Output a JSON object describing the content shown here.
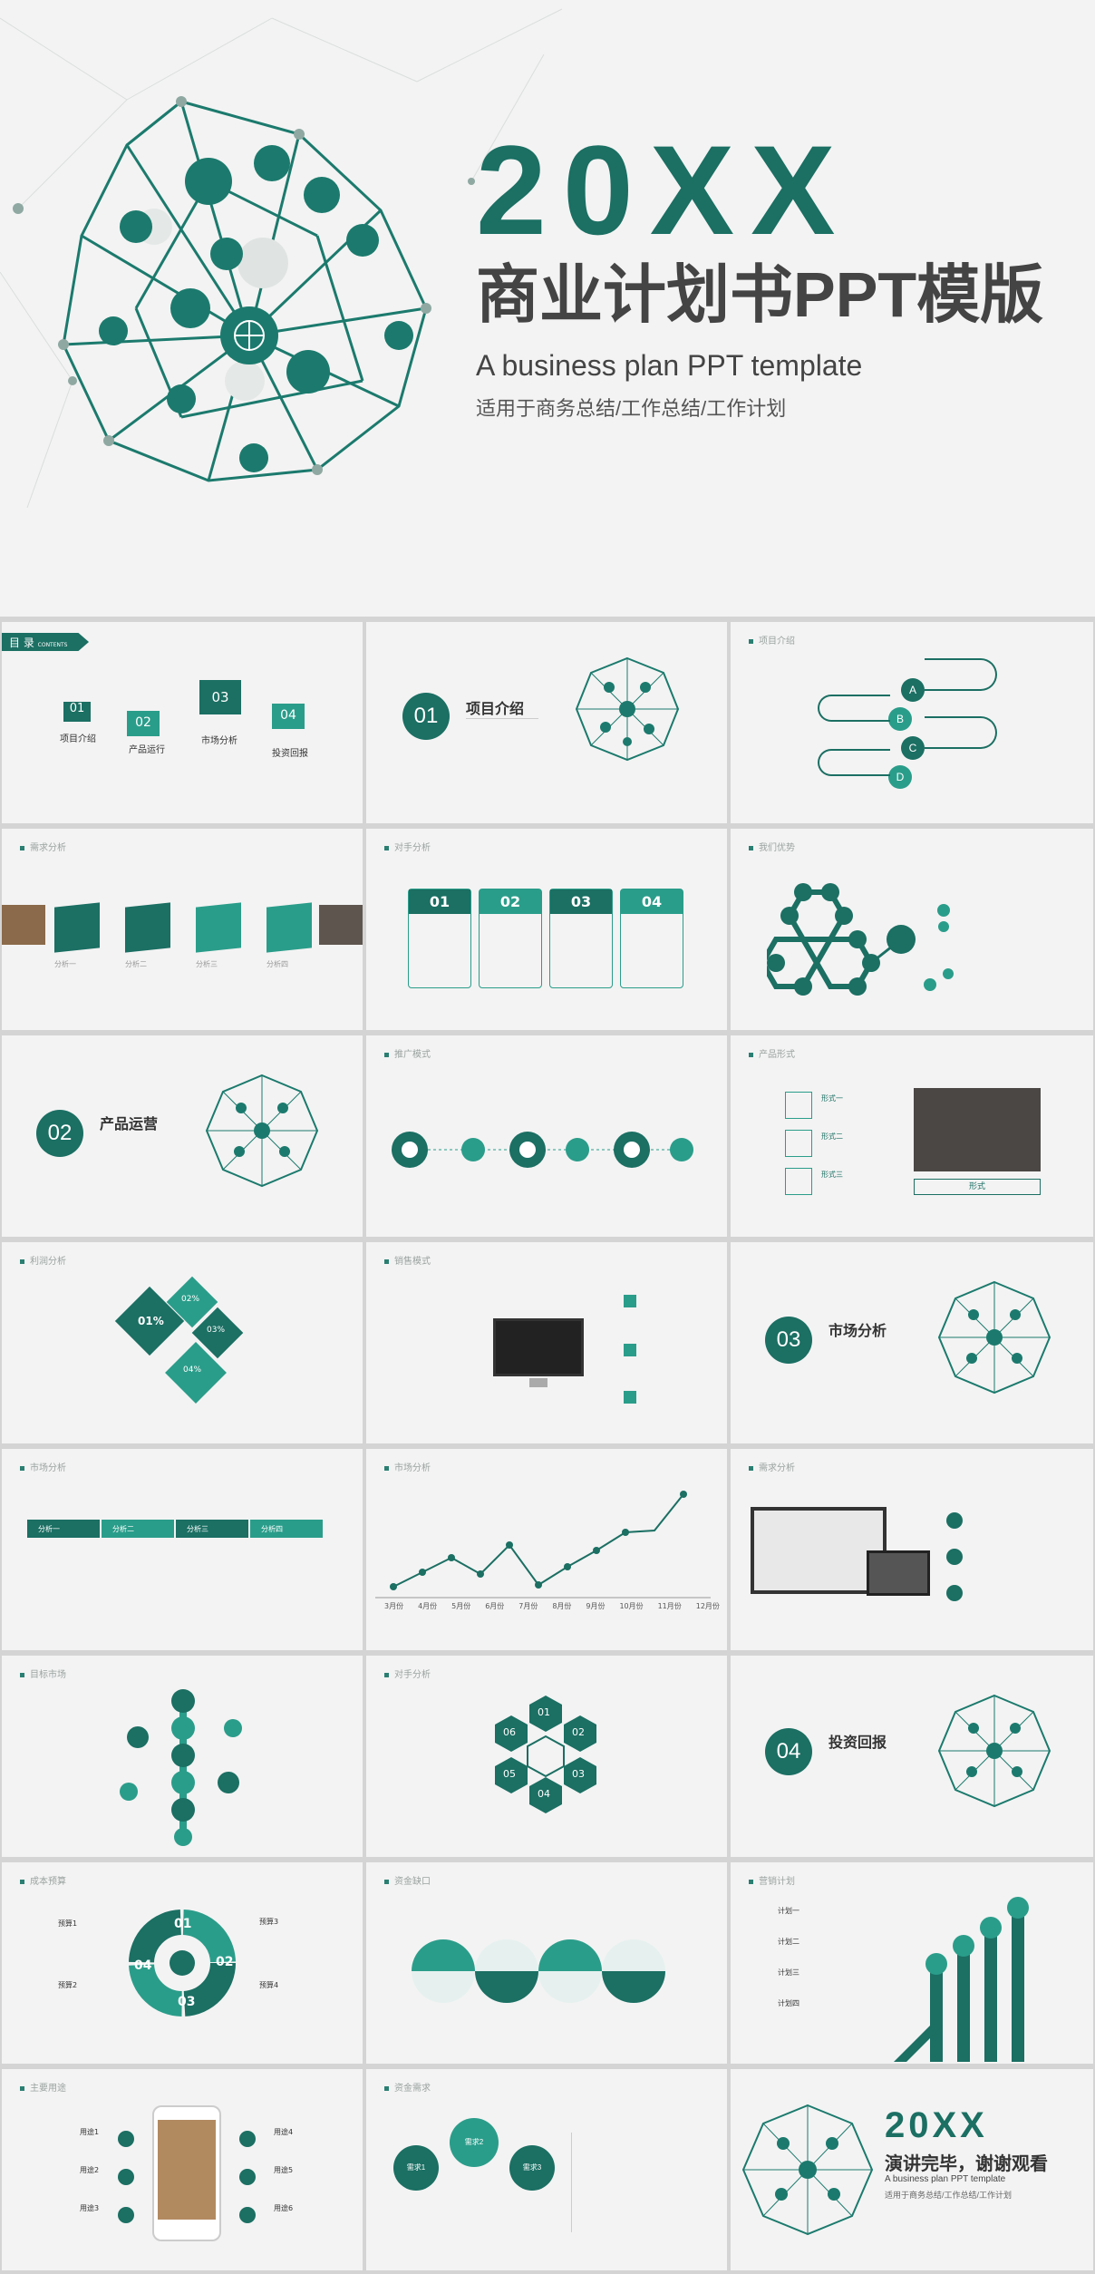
{
  "cover": {
    "year": "20XX",
    "title": "商业计划书PPT模版",
    "english": "A business plan PPT template",
    "subtitle": "适用于商务总结/工作总结/工作计划"
  },
  "colors": {
    "primary": "#1b6f63",
    "accent": "#2a9d8a",
    "light": "#e6f1ef"
  },
  "contents": {
    "header": "目 录",
    "header_en": "CONTENTS",
    "items": [
      {
        "num": "01",
        "label": "项目介绍"
      },
      {
        "num": "02",
        "label": "产品运行"
      },
      {
        "num": "03",
        "label": "市场分析"
      },
      {
        "num": "04",
        "label": "投资回报"
      }
    ]
  },
  "sections": [
    {
      "num": "01",
      "title": "项目介绍"
    },
    {
      "num": "02",
      "title": "产品运营"
    },
    {
      "num": "03",
      "title": "市场分析"
    },
    {
      "num": "04",
      "title": "投资回报"
    }
  ],
  "slide_headers": [
    "项目介绍",
    "需求分析",
    "对手分析",
    "我们优势",
    "推广模式",
    "产品形式",
    "利润分析",
    "销售模式",
    "市场分析",
    "市场分析",
    "需求分析",
    "目标市场",
    "对手分析",
    "成本预算",
    "资金缺口",
    "营销计划",
    "主要用途",
    "资金需求"
  ],
  "abc": [
    "A",
    "B",
    "C",
    "D"
  ],
  "quarters": [
    "01",
    "02",
    "03",
    "04"
  ],
  "analysis_labels": [
    "分析一",
    "分析二",
    "分析三",
    "分析四"
  ],
  "percents": [
    "01%",
    "02%",
    "03%",
    "04%"
  ],
  "formats": [
    "形式一",
    "形式二",
    "形式三"
  ],
  "format_btn": "形式",
  "months": [
    "3月份",
    "4月份",
    "5月份",
    "6月份",
    "7月份",
    "8月份",
    "9月份",
    "10月份",
    "11月份",
    "12月份"
  ],
  "hex_nums": [
    "01",
    "02",
    "03",
    "04",
    "05",
    "06"
  ],
  "cost_labels": [
    "预算1",
    "预算2",
    "预算3",
    "预算4"
  ],
  "plan_labels": [
    "计划一",
    "计划二",
    "计划三",
    "计划四"
  ],
  "use_labels": [
    "用途1",
    "用途2",
    "用途3",
    "用途4",
    "用途5",
    "用途6"
  ],
  "need_labels": [
    "需求1",
    "需求2",
    "需求3"
  ],
  "ending": {
    "year": "20XX",
    "title": "演讲完毕，谢谢观看",
    "english": "A business plan PPT template",
    "subtitle": "适用于商务总结/工作总结/工作计划"
  }
}
